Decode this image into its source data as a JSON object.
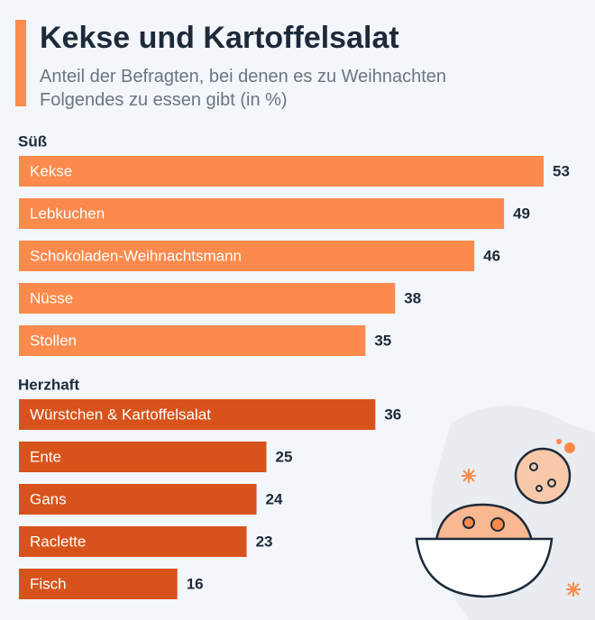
{
  "header": {
    "title": "Kekse und Kartoffelsalat",
    "subtitle_lines": [
      "Anteil der Befragten, bei denen es zu Weihnachten",
      "Folgendes zu essen gibt (in %)"
    ]
  },
  "chart_data": [
    {
      "type": "bar",
      "title": "Süß",
      "color": "#fc8a4c",
      "categories": [
        "Kekse",
        "Lebkuchen",
        "Schokoladen-Weihnachtsmann",
        "Nüsse",
        "Stollen"
      ],
      "values": [
        53,
        49,
        46,
        38,
        35
      ]
    },
    {
      "type": "bar",
      "title": "Herzhaft",
      "color": "#d8531b",
      "categories": [
        "Würstchen & Kartoffelsalat",
        "Ente",
        "Gans",
        "Raclette",
        "Fisch"
      ],
      "values": [
        36,
        25,
        24,
        23,
        16
      ]
    }
  ]
}
